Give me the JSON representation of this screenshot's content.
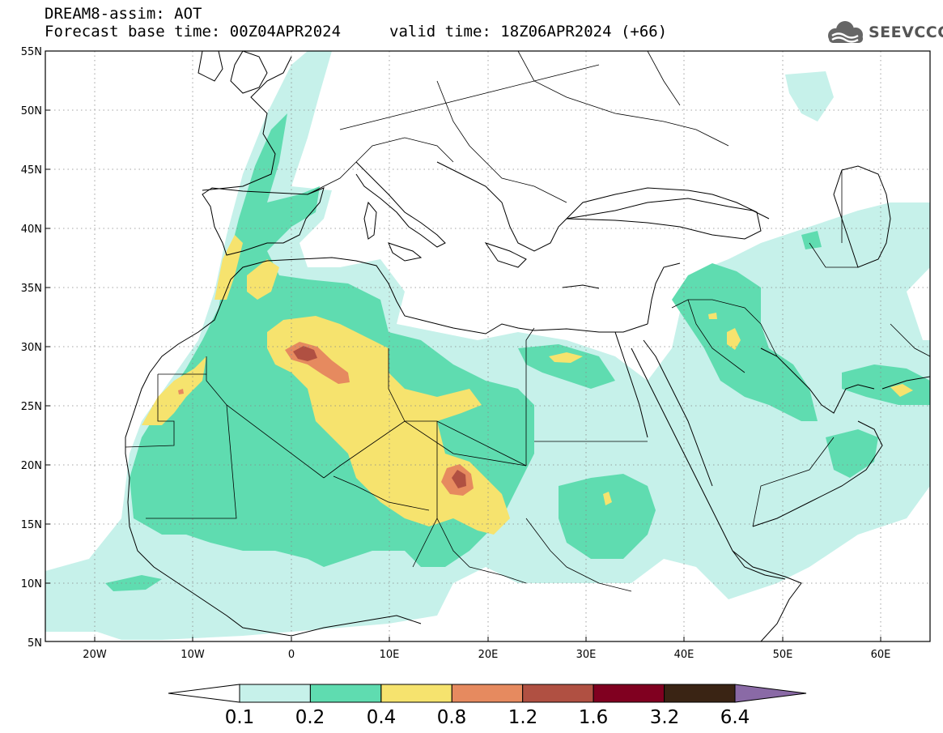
{
  "header": {
    "title": "DREAM8-assim: AOT",
    "base_time": "Forecast base time: 00Z04APR2024",
    "valid_time": "valid time: 18Z06APR2024 (+66)",
    "logo_text": "SEEVCCC",
    "logo_icon": "cloud-icon"
  },
  "map": {
    "lon_range": [
      -25,
      65
    ],
    "lat_range": [
      5,
      55
    ],
    "lat_labels": [
      "55N",
      "50N",
      "45N",
      "40N",
      "35N",
      "30N",
      "25N",
      "20N",
      "15N",
      "10N",
      "5N"
    ],
    "lon_labels": [
      "20W",
      "10W",
      "0",
      "10E",
      "20E",
      "30E",
      "40E",
      "50E",
      "60E"
    ],
    "grid": "dotted"
  },
  "colorbar": {
    "labels": [
      "0.1",
      "0.2",
      "0.4",
      "0.8",
      "1.2",
      "1.6",
      "3.2",
      "6.4"
    ],
    "colors": [
      "#c6f1ea",
      "#5fdcb0",
      "#f6e36e",
      "#e68a5f",
      "#b05042",
      "#800020",
      "#3a2414"
    ],
    "below_color": "#ffffff",
    "above_color": "#8a6aa6"
  }
}
